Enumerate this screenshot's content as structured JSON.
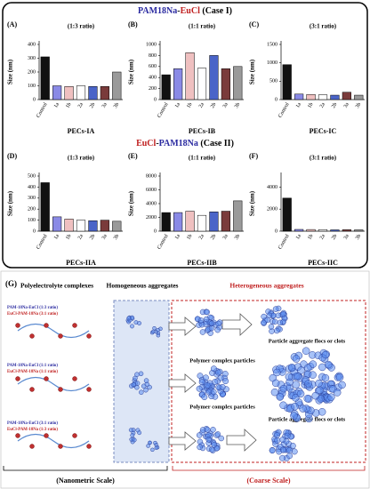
{
  "case_titles": [
    [
      "PAM18Na",
      "-",
      "EuCl",
      " (Case I)"
    ],
    [
      "EuCl",
      "-",
      "PAM18Na",
      " (Case II)"
    ]
  ],
  "chart_data": [
    {
      "type": "bar",
      "panel": "(A)",
      "ratio": "(1:3 ratio)",
      "y_label": "Size (nm)",
      "x_label": "PECs-IA",
      "categories": [
        "Control",
        "1a",
        "1b",
        "2a",
        "2b",
        "3a",
        "3b"
      ],
      "values": [
        310,
        100,
        95,
        100,
        95,
        95,
        200
      ],
      "colors": [
        "#111111",
        "#8a8ae6",
        "#efc0c0",
        "#ffffff",
        "#4a64c8",
        "#7a3b3b",
        "#9a9a9a"
      ],
      "ylim": [
        0,
        400
      ],
      "yticks": [
        0,
        100,
        200,
        300,
        400
      ]
    },
    {
      "type": "bar",
      "panel": "(B)",
      "ratio": "(1:1 ratio)",
      "y_label": "Size (nm)",
      "x_label": "PECs-IB",
      "categories": [
        "Control",
        "1a",
        "1b",
        "2a",
        "2b",
        "3a",
        "3b"
      ],
      "values": [
        450,
        560,
        850,
        570,
        800,
        560,
        600
      ],
      "colors": [
        "#111111",
        "#8a8ae6",
        "#efc0c0",
        "#ffffff",
        "#4a64c8",
        "#7a3b3b",
        "#9a9a9a"
      ],
      "ylim": [
        0,
        1000
      ],
      "yticks": [
        0,
        200,
        400,
        600,
        800,
        1000
      ]
    },
    {
      "type": "bar",
      "panel": "(C)",
      "ratio": "(3:1 ratio)",
      "y_label": "Size (nm)",
      "x_label": "PECs-IC",
      "categories": [
        "Control",
        "1a",
        "1b",
        "2a",
        "2b",
        "3a",
        "3b"
      ],
      "values": [
        950,
        150,
        140,
        130,
        120,
        200,
        120
      ],
      "colors": [
        "#111111",
        "#8a8ae6",
        "#efc0c0",
        "#ffffff",
        "#4a64c8",
        "#7a3b3b",
        "#9a9a9a"
      ],
      "ylim": [
        0,
        1500
      ],
      "yticks": [
        0,
        500,
        1000,
        1500
      ]
    },
    {
      "type": "bar",
      "panel": "(D)",
      "ratio": "(1:3 ratio)",
      "y_label": "Size (nm)",
      "x_label": "PECs-IIA",
      "categories": [
        "Control",
        "1a",
        "1b",
        "2a",
        "2b",
        "3a",
        "3b"
      ],
      "values": [
        440,
        130,
        110,
        100,
        95,
        100,
        90
      ],
      "colors": [
        "#111111",
        "#8a8ae6",
        "#efc0c0",
        "#ffffff",
        "#4a64c8",
        "#7a3b3b",
        "#9a9a9a"
      ],
      "ylim": [
        0,
        500
      ],
      "yticks": [
        0,
        100,
        200,
        300,
        400,
        500
      ]
    },
    {
      "type": "bar",
      "panel": "(E)",
      "ratio": "(1:1 ratio)",
      "y_label": "Size (nm)",
      "x_label": "PECs-IIB",
      "categories": [
        "Control",
        "1a",
        "1b",
        "2a",
        "2b",
        "3a",
        "3b"
      ],
      "values": [
        2700,
        2700,
        2900,
        2300,
        2800,
        2900,
        4400
      ],
      "colors": [
        "#111111",
        "#8a8ae6",
        "#efc0c0",
        "#ffffff",
        "#4a64c8",
        "#7a3b3b",
        "#9a9a9a"
      ],
      "ylim": [
        0,
        8000
      ],
      "yticks": [
        0,
        2000,
        4000,
        6000,
        8000
      ]
    },
    {
      "type": "bar",
      "panel": "(F)",
      "ratio": "(3:1 ratio)",
      "y_label": "Size (nm)",
      "x_label": "PECs-IIC",
      "categories": [
        "Control",
        "1a",
        "1b",
        "2a",
        "2b",
        "3a",
        "3b"
      ],
      "values": [
        3000,
        160,
        150,
        140,
        120,
        130,
        120
      ],
      "colors": [
        "#111111",
        "#8a8ae6",
        "#efc0c0",
        "#ffffff",
        "#4a64c8",
        "#7a3b3b",
        "#9a9a9a"
      ],
      "ylim": [
        0,
        5000
      ],
      "yticks": [
        0,
        2000,
        4000
      ]
    }
  ],
  "diagram": {
    "panel": "(G)",
    "col1": "Polyelectrolyte complexes",
    "col2": "Homogeneous aggregates",
    "col3": "Heterogeneous aggregates",
    "groups": [
      [
        "PAM-18Na-EuCl (1:3 ratio)",
        "EuCl-PAM-18Na (3:1 ratio)"
      ],
      [
        "PAM-18Na-EuCl (1:1 ratio)",
        "EuCl-PAM-18Na (1:1 ratio)"
      ],
      [
        "PAM-18Na-EuCl (3:1 ratio)",
        "EuCl-PAM-18Na (1:3 ratio)"
      ]
    ],
    "flocs_top": "Particle aggregate flocs or clots",
    "particles_top": "Polymer complex particles",
    "particles_bottom": "Polymer complex particles",
    "flocs_bottom": "Particle aggregate flocs or clots",
    "scale_left": "(Nanometric Scale)",
    "scale_right": "(Coarse Scale)"
  }
}
